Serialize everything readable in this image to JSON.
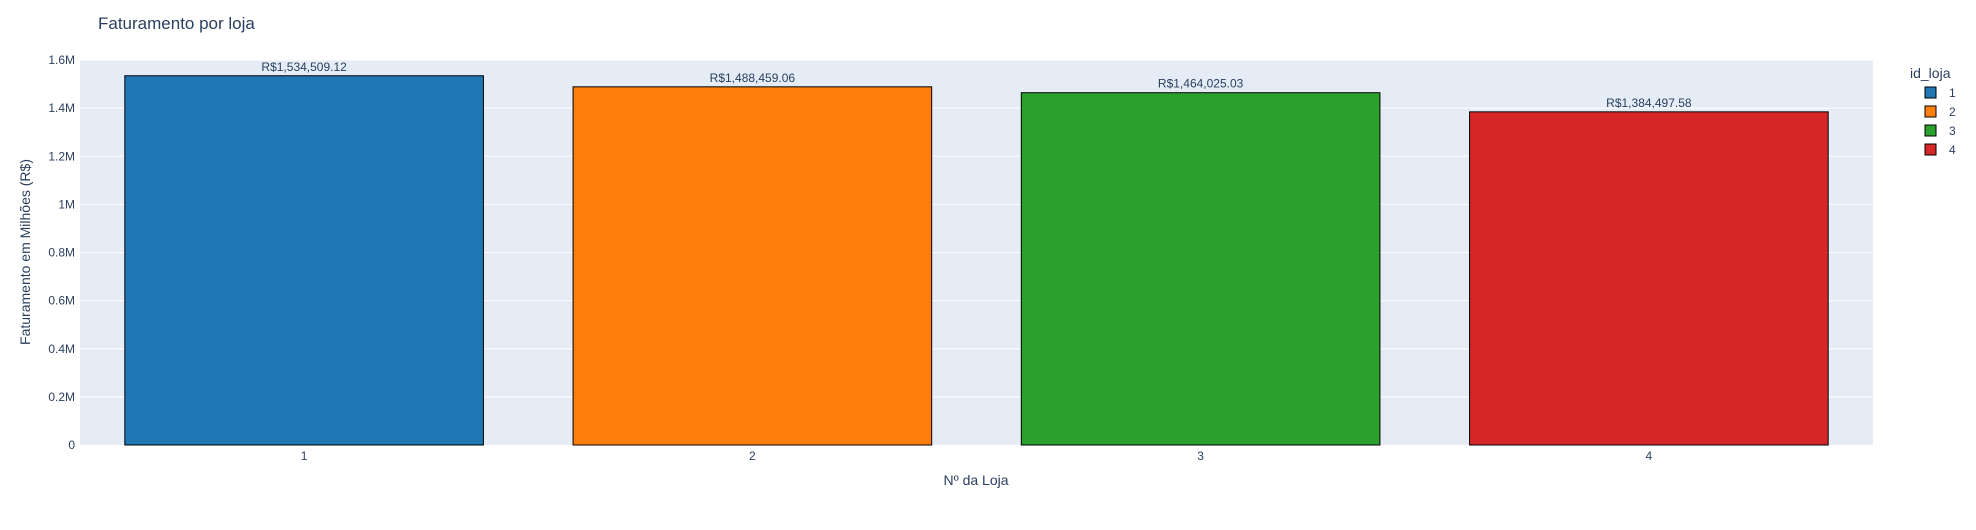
{
  "chart_data": {
    "type": "bar",
    "title": "Faturamento por loja",
    "xlabel": "Nº da Loja",
    "ylabel": "Faturamento em Milhões (R$)",
    "categories": [
      "1",
      "2",
      "3",
      "4"
    ],
    "values": [
      1534509.12,
      1488459.06,
      1464025.03,
      1384497.58
    ],
    "data_labels": [
      "R$1,534,509.12",
      "R$1,488,459.06",
      "R$1,464,025.03",
      "R$1,384,497.58"
    ],
    "ylim": [
      0,
      1600000
    ],
    "yticks": [
      0,
      200000,
      400000,
      600000,
      800000,
      1000000,
      1200000,
      1400000,
      1600000
    ],
    "ytick_labels": [
      "0",
      "0.2M",
      "0.4M",
      "0.6M",
      "0.8M",
      "1M",
      "1.2M",
      "1.4M",
      "1.6M"
    ],
    "grid": true,
    "legend": {
      "title": "id_loja",
      "placement": "top-right",
      "entries": [
        "1",
        "2",
        "3",
        "4"
      ]
    },
    "colors": [
      "#1f77b4",
      "#ff7f0e",
      "#2ca02c",
      "#d62728"
    ],
    "plot_background": "#e5ecf6",
    "grid_color": "#ffffff",
    "text_color": "#2a3f5f",
    "bar_outline_color": "#000000"
  }
}
